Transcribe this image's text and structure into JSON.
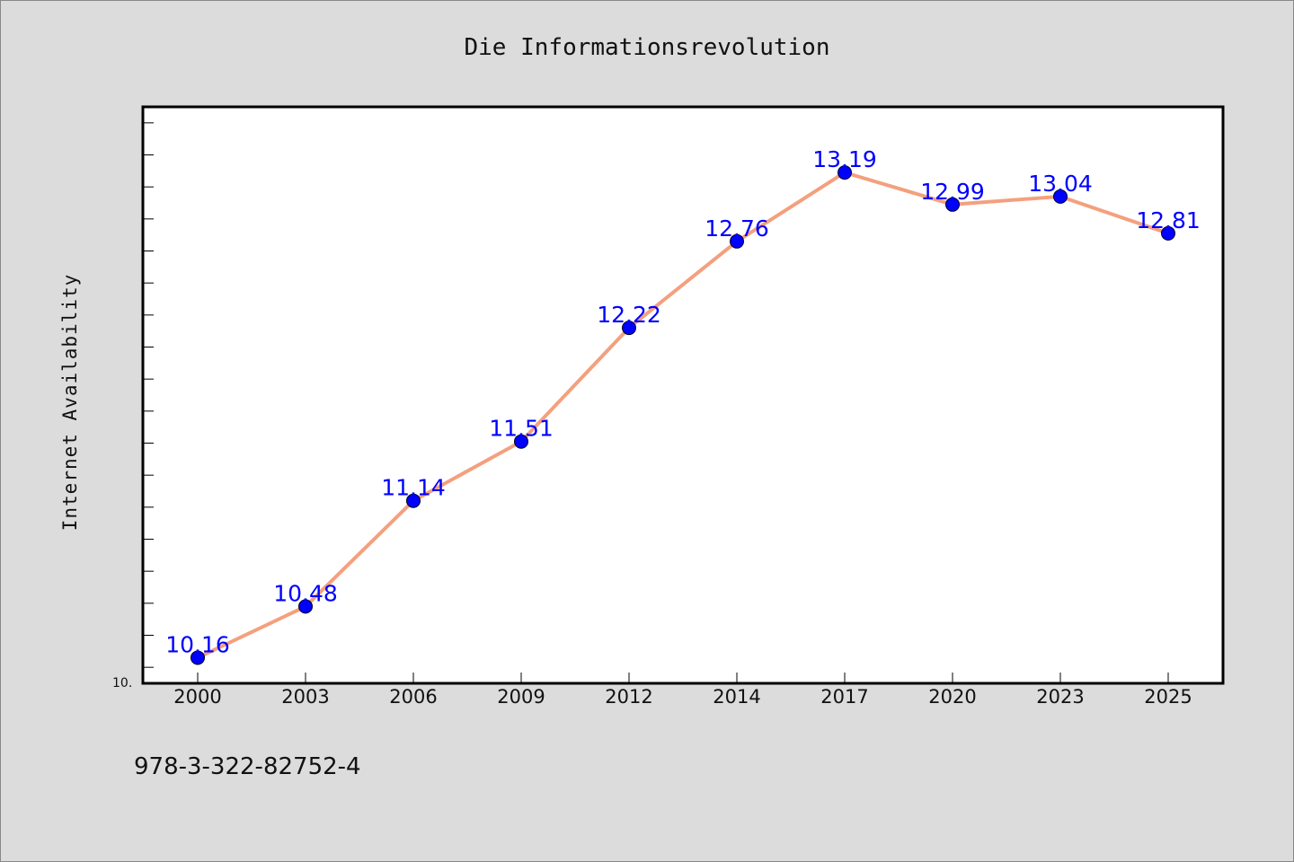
{
  "chart_data": {
    "type": "line",
    "title": "Die Informationsrevolution",
    "xlabel": "",
    "ylabel": "Internet Availability",
    "categories": [
      "2000",
      "2003",
      "2006",
      "2009",
      "2012",
      "2014",
      "2017",
      "2020",
      "2023",
      "2025"
    ],
    "series": [
      {
        "values": [
          10.16,
          10.48,
          11.14,
          11.51,
          12.22,
          12.76,
          13.19,
          12.99,
          13.04,
          12.81
        ],
        "labels": [
          "10.16",
          "10.48",
          "11.14",
          "11.51",
          "12.22",
          "12.76",
          "13.19",
          "12.99",
          "13.04",
          "12.81"
        ],
        "line_color": "#f4a07e",
        "marker_color": "#0000ff"
      }
    ],
    "ylim": [
      10.0,
      13.6
    ],
    "ytick_labels": [
      {
        "value": 10.0,
        "label": "10."
      }
    ],
    "grid": false,
    "legend": "none"
  },
  "footnote": "978-3-322-82752-4",
  "colors": {
    "background": "#dcdcdc",
    "plot_background": "#ffffff",
    "data_label": "#0000ff"
  }
}
